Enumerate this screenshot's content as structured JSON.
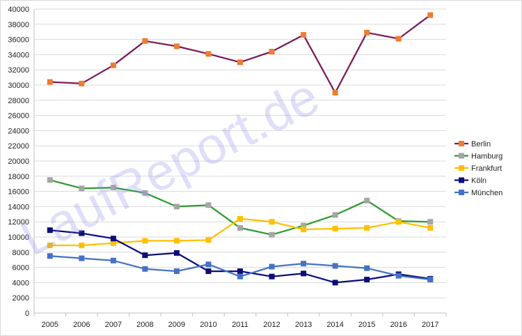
{
  "chart_data": {
    "type": "line",
    "title": "",
    "xlabel": "",
    "ylabel": "",
    "ylim": [
      0,
      40000
    ],
    "y_ticks": [
      "0",
      "2000",
      "4000",
      "6000",
      "8000",
      "10000",
      "12000",
      "14000",
      "16000",
      "18000",
      "20000",
      "22000",
      "24000",
      "26000",
      "28000",
      "30000",
      "32000",
      "34000",
      "36000",
      "38000",
      "40000"
    ],
    "categories": [
      "2005",
      "2006",
      "2007",
      "2008",
      "2009",
      "2010",
      "2011",
      "2012",
      "2013",
      "2014",
      "2015",
      "2016",
      "2017"
    ],
    "grid": "horizontal",
    "legend_position": "right",
    "series": [
      {
        "name": "Berlin",
        "line_color": "#7b1a5c",
        "marker_color": "#ed7d31",
        "values": [
          30400,
          30200,
          32600,
          35800,
          35100,
          34100,
          33000,
          34400,
          36600,
          29000,
          36900,
          36100,
          39200
        ]
      },
      {
        "name": "Hamburg",
        "line_color": "#2e9a2e",
        "marker_color": "#a5a5a5",
        "values": [
          17500,
          16400,
          16500,
          15800,
          14000,
          14200,
          11200,
          10300,
          11500,
          12900,
          14800,
          12100,
          12000
        ]
      },
      {
        "name": "Frankfurt",
        "line_color": "#ffc000",
        "marker_color": "#ffc000",
        "values": [
          8900,
          8900,
          9200,
          9500,
          9500,
          9600,
          12400,
          12000,
          11000,
          11100,
          11200,
          12000,
          11200
        ]
      },
      {
        "name": "Köln",
        "line_color": "#0c0c7a",
        "marker_color": "#0c0c7a",
        "values": [
          10900,
          10500,
          9800,
          7600,
          7900,
          5500,
          5500,
          4800,
          5200,
          4000,
          4400,
          5100,
          4500
        ]
      },
      {
        "name": "München",
        "line_color": "#4472c4",
        "marker_color": "#4472c4",
        "values": [
          7500,
          7200,
          6900,
          5800,
          5500,
          6400,
          4800,
          6100,
          6500,
          6200,
          5900,
          4900,
          4400
        ]
      }
    ]
  },
  "watermark": {
    "text": "LaufReport.de"
  }
}
